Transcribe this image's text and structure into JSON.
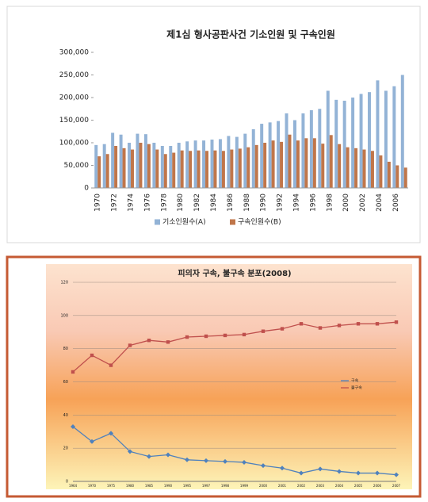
{
  "chart_data": [
    {
      "type": "bar",
      "title": "제1심 형사공판사건 기소인원 및 구속인원",
      "categories": [
        "1970",
        null,
        "1972",
        null,
        "1974",
        null,
        "1976",
        null,
        "1978",
        null,
        "1980",
        null,
        "1982",
        null,
        "1984",
        null,
        "1986",
        null,
        "1988",
        null,
        "1990",
        null,
        "1992",
        null,
        "1994",
        null,
        "1996",
        null,
        "1998",
        null,
        "2000",
        null,
        "2002",
        null,
        "2004",
        null,
        "2006",
        null
      ],
      "series": [
        {
          "name": "기소인원수(A)",
          "color": "#93b3d6",
          "values": [
            95000,
            97000,
            122000,
            118000,
            100000,
            120000,
            119000,
            100000,
            93000,
            93000,
            100000,
            103000,
            105000,
            105000,
            107000,
            108000,
            115000,
            113000,
            120000,
            130000,
            142000,
            145000,
            148000,
            165000,
            150000,
            165000,
            172000,
            175000,
            215000,
            195000,
            193000,
            200000,
            208000,
            212000,
            238000,
            215000,
            225000,
            250000
          ]
        },
        {
          "name": "구속인원수(B)",
          "color": "#c0764a",
          "values": [
            70000,
            75000,
            93000,
            88000,
            85000,
            100000,
            97000,
            85000,
            75000,
            78000,
            83000,
            82000,
            83000,
            82000,
            83000,
            82000,
            85000,
            87000,
            90000,
            95000,
            100000,
            105000,
            102000,
            118000,
            105000,
            110000,
            110000,
            98000,
            117000,
            97000,
            90000,
            88000,
            85000,
            82000,
            72000,
            58000,
            50000,
            45000
          ]
        }
      ],
      "ylim": [
        0,
        300000
      ],
      "yticks": [
        0,
        {
          "value": 50000,
          "label": "50,000"
        },
        {
          "value": 100000,
          "label": "100,000"
        },
        {
          "value": 150000,
          "label": "150,000"
        },
        {
          "value": 200000,
          "label": "200,000"
        },
        {
          "value": 250000,
          "label": "250,000"
        },
        {
          "value": 300000,
          "label": "300,000"
        }
      ],
      "grid": false,
      "legend": "bottom"
    },
    {
      "type": "line",
      "title": "피의자 구속, 불구속 분포(2008)",
      "categories": [
        "1964",
        "1970",
        "1975",
        "1980",
        "1985",
        "1990",
        "1995",
        "1997",
        "1998",
        "1999",
        "2000",
        "2001",
        "2002",
        "2003",
        "2004",
        "2005",
        "2006",
        "2007"
      ],
      "series": [
        {
          "name": "구속",
          "color": "#4f81bd",
          "values": [
            33,
            24,
            29,
            18,
            15,
            16,
            13,
            12.5,
            12,
            11.5,
            9.5,
            8,
            5,
            7.5,
            6,
            5,
            5,
            4
          ]
        },
        {
          "name": "불구속",
          "color": "#c0504d",
          "values": [
            66,
            76,
            70,
            82,
            85,
            84,
            87,
            87.5,
            88,
            88.5,
            90.5,
            92,
            95,
            92.5,
            94,
            95,
            95,
            96
          ]
        }
      ],
      "ylim": [
        0,
        120
      ],
      "yticks": [
        0,
        20,
        40,
        60,
        80,
        100,
        120
      ],
      "grid": true,
      "legend": "right"
    }
  ]
}
